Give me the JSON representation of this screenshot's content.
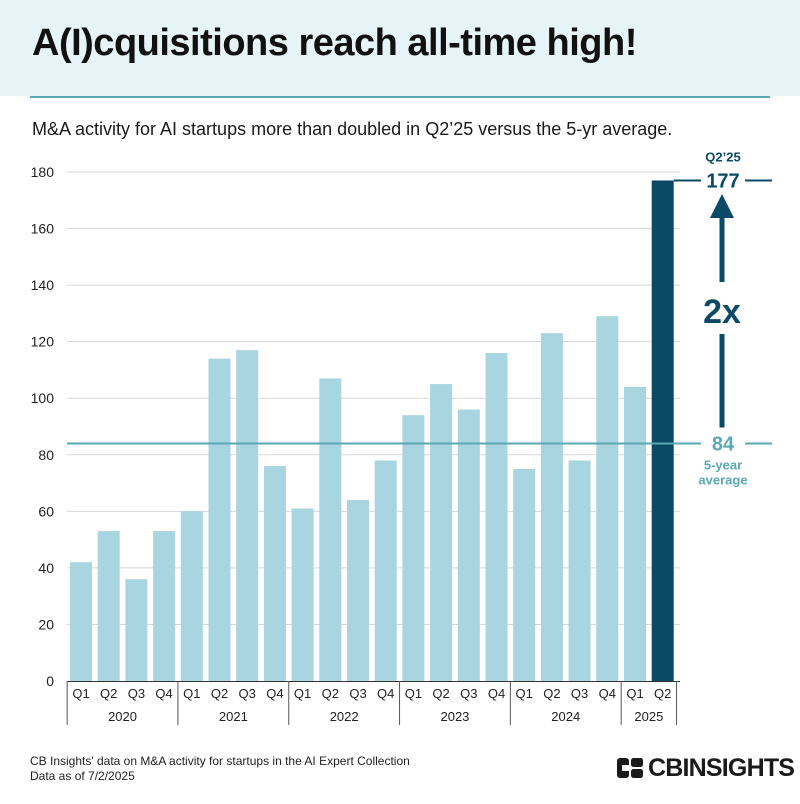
{
  "title": "A(I)cquisitions reach all-time high!",
  "subtitle": "M&A activity for AI startups more than doubled in Q2’25 versus the 5-yr average.",
  "chart_data": {
    "type": "bar",
    "title": "A(I)cquisitions reach all-time high!",
    "ylim": [
      0,
      180
    ],
    "yticks": [
      0,
      20,
      40,
      60,
      80,
      100,
      120,
      140,
      160,
      180
    ],
    "grid": true,
    "categories": [
      "Q1 2020",
      "Q2 2020",
      "Q3 2020",
      "Q4 2020",
      "Q1 2021",
      "Q2 2021",
      "Q3 2021",
      "Q4 2021",
      "Q1 2022",
      "Q2 2022",
      "Q3 2022",
      "Q4 2022",
      "Q1 2023",
      "Q2 2023",
      "Q3 2023",
      "Q4 2023",
      "Q1 2024",
      "Q2 2024",
      "Q3 2024",
      "Q4 2024",
      "Q1 2025",
      "Q2 2025"
    ],
    "quarter_labels": [
      "Q1",
      "Q2",
      "Q3",
      "Q4",
      "Q1",
      "Q2",
      "Q3",
      "Q4",
      "Q1",
      "Q2",
      "Q3",
      "Q4",
      "Q1",
      "Q2",
      "Q3",
      "Q4",
      "Q1",
      "Q2",
      "Q3",
      "Q4",
      "Q1",
      "Q2"
    ],
    "year_groups": [
      {
        "year": "2020",
        "count": 4
      },
      {
        "year": "2021",
        "count": 4
      },
      {
        "year": "2022",
        "count": 4
      },
      {
        "year": "2023",
        "count": 4
      },
      {
        "year": "2024",
        "count": 4
      },
      {
        "year": "2025",
        "count": 2
      }
    ],
    "values": [
      42,
      53,
      36,
      53,
      60,
      114,
      117,
      76,
      61,
      107,
      64,
      78,
      94,
      105,
      96,
      116,
      75,
      123,
      78,
      129,
      104,
      177
    ],
    "highlight_index": 21,
    "bar_color": "#a8d5df",
    "highlight_color": "#0a4a66",
    "average": {
      "value": 84,
      "value_label": "84",
      "label_line1": "5-year",
      "label_line2": "average",
      "color": "#5aa8b3"
    },
    "peak": {
      "period_label": "Q2’25",
      "value_label": "177",
      "value": 177,
      "color": "#0a4a66"
    },
    "multiplier_label": "2x"
  },
  "footer": {
    "source_line": "CB Insights' data on M&A activity for startups in the AI Expert Collection",
    "date_line": "Data as of 7/2/2025"
  },
  "logo": {
    "text": "CBINSIGHTS",
    "icon": "cb-logo-mark-icon"
  }
}
